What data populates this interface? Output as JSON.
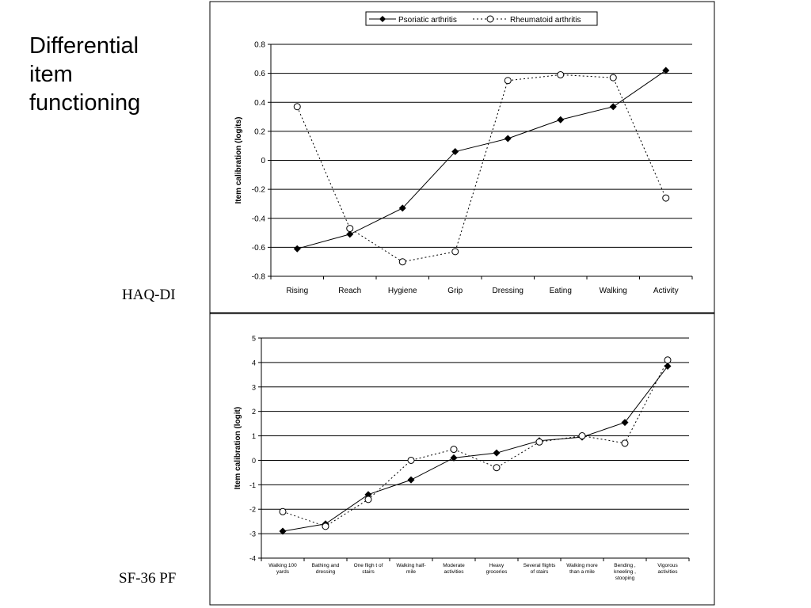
{
  "slide": {
    "title_lines": [
      "Differential",
      "item",
      "functioning"
    ],
    "chart_labels": [
      "HAQ-DI",
      "SF-36 PF"
    ]
  },
  "legend": {
    "series_a": "Psoriatic arthritis",
    "series_b": "Rheumatoid arthritis"
  },
  "colors": {
    "line": "#000000",
    "frame": "#000000",
    "marker_open_fill": "#ffffff"
  },
  "chart_data": [
    {
      "type": "line",
      "title": "",
      "xlabel": "",
      "ylabel": "Item calibration (logits)",
      "ylim": [
        -0.8,
        0.8
      ],
      "yticks": [
        0.8,
        0.6,
        0.4,
        0.2,
        0,
        -0.2,
        -0.4,
        -0.6,
        -0.8
      ],
      "ytick_labels": [
        "0.8",
        "0.6",
        "0.4",
        "0.2",
        "0",
        "-0.2",
        "-0.4",
        "-0.6",
        "-0.8"
      ],
      "grid": true,
      "legend_position": "top",
      "categories": [
        "Rising",
        "Reach",
        "Hygiene",
        "Grip",
        "Dressing",
        "Eating",
        "Walking",
        "Activity"
      ],
      "series": [
        {
          "name": "Psoriatic arthritis",
          "marker": "diamond",
          "style": "solid",
          "values": [
            -0.61,
            -0.51,
            -0.33,
            0.06,
            0.15,
            0.28,
            0.37,
            0.62
          ]
        },
        {
          "name": "Rheumatoid arthritis",
          "marker": "circle",
          "style": "dotted",
          "values": [
            0.37,
            -0.47,
            -0.7,
            -0.63,
            0.55,
            0.59,
            0.57,
            -0.26
          ]
        }
      ]
    },
    {
      "type": "line",
      "title": "",
      "xlabel": "",
      "ylabel": "Item calibration (logit)",
      "ylim": [
        -4,
        5
      ],
      "yticks": [
        5,
        4,
        3,
        2,
        1,
        0,
        -1,
        -2,
        -3,
        -4
      ],
      "ytick_labels": [
        "5",
        "4",
        "3",
        "2",
        "1",
        "0",
        "-1",
        "-2",
        "-3",
        "-4"
      ],
      "grid": true,
      "categories": [
        [
          "Walking 100",
          "yards"
        ],
        [
          "Bathing and",
          "dressing"
        ],
        [
          "One fligh t of",
          "stairs"
        ],
        [
          "Walking half-",
          "mile"
        ],
        [
          "Moderate",
          "activities"
        ],
        [
          "Heavy",
          "groceries"
        ],
        [
          "Several flights",
          "of stairs"
        ],
        [
          "Walking more",
          "than a mile"
        ],
        [
          "Bending ,",
          "kneeling ,",
          "stooping"
        ],
        [
          "Vigorous",
          "activities"
        ]
      ],
      "series": [
        {
          "name": "Psoriatic arthritis",
          "marker": "diamond",
          "style": "solid",
          "values": [
            -2.9,
            -2.6,
            -1.4,
            -0.8,
            0.1,
            0.3,
            0.8,
            0.95,
            1.55,
            3.85
          ]
        },
        {
          "name": "Rheumatoid arthritis",
          "marker": "circle",
          "style": "dotted",
          "values": [
            -2.1,
            -2.7,
            -1.6,
            0.0,
            0.45,
            -0.3,
            0.75,
            1.0,
            0.7,
            4.1
          ]
        }
      ]
    }
  ]
}
